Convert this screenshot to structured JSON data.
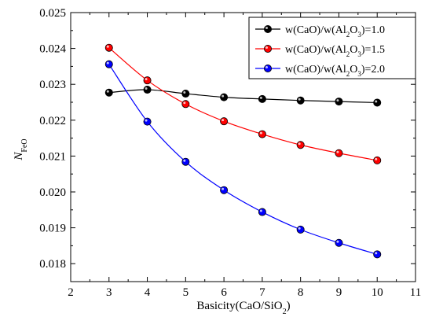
{
  "chart_data": {
    "type": "line",
    "xlabel": "Basicity(CaO/SiO",
    "xlabel_sub": "2",
    "xlabel_close": ")",
    "ylabel": "N",
    "ylabel_sub": "FeO",
    "xlim": [
      2,
      11
    ],
    "ylim": [
      0.0175,
      0.025
    ],
    "xticks": [
      "2",
      "3",
      "4",
      "5",
      "6",
      "7",
      "8",
      "9",
      "10",
      "11"
    ],
    "yticks": [
      "0.018",
      "0.019",
      "0.020",
      "0.021",
      "0.022",
      "0.023",
      "0.024",
      "0.025"
    ],
    "x": [
      3,
      4,
      5,
      6,
      7,
      8,
      9,
      10
    ],
    "legend_position": "top-right",
    "series": [
      {
        "name": "w(CaO)/w(Al2O3)=1.0",
        "legend": {
          "pre": "w(CaO)/w(Al",
          "sub1": "2",
          "mid": "O",
          "sub2": "3",
          "post": ")=1.0"
        },
        "color": "#000000",
        "values": [
          0.02277,
          0.02285,
          0.02274,
          0.02264,
          0.02259,
          0.02255,
          0.02252,
          0.02249
        ]
      },
      {
        "name": "w(CaO)/w(Al2O3)=1.5",
        "legend": {
          "pre": "w(CaO)/w(Al",
          "sub1": "2",
          "mid": "O",
          "sub2": "3",
          "post": ")=1.5"
        },
        "color": "#ff0000",
        "values": [
          0.02402,
          0.02311,
          0.02245,
          0.02197,
          0.02161,
          0.02131,
          0.02108,
          0.02088
        ]
      },
      {
        "name": "w(CaO)/w(Al2O3)=2.0",
        "legend": {
          "pre": "w(CaO)/w(Al",
          "sub1": "2",
          "mid": "O",
          "sub2": "3",
          "post": ")=2.0"
        },
        "color": "#0000ff",
        "values": [
          0.02356,
          0.02196,
          0.02084,
          0.02005,
          0.01944,
          0.01895,
          0.01858,
          0.01826
        ]
      }
    ]
  }
}
